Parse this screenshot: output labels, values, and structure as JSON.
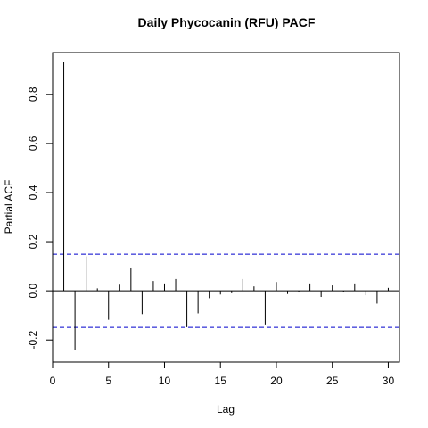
{
  "chart_data": {
    "type": "bar",
    "title": "Daily Phycocanin (RFU) PACF",
    "xlabel": "Lag",
    "ylabel": "Partial ACF",
    "xlim": [
      0,
      31
    ],
    "ylim": [
      -0.29,
      0.97
    ],
    "x_ticks": [
      0,
      5,
      10,
      15,
      20,
      25,
      30
    ],
    "y_ticks": [
      -0.2,
      0.0,
      0.2,
      0.4,
      0.6,
      0.8
    ],
    "y_tick_labels": [
      "-0.2",
      "0.0",
      "0.2",
      "0.4",
      "0.6",
      "0.8"
    ],
    "confidence_limit": 0.149,
    "zero_line": true,
    "lags": [
      1,
      2,
      3,
      4,
      5,
      6,
      7,
      8,
      9,
      10,
      11,
      12,
      13,
      14,
      15,
      16,
      17,
      18,
      19,
      20,
      21,
      22,
      23,
      24,
      25,
      26,
      27,
      28,
      29,
      30
    ],
    "values": [
      0.933,
      -0.24,
      0.14,
      0.01,
      -0.118,
      0.025,
      0.095,
      -0.095,
      0.04,
      0.03,
      0.048,
      -0.148,
      -0.092,
      -0.03,
      -0.015,
      -0.01,
      0.048,
      0.018,
      -0.137,
      0.036,
      -0.013,
      -0.005,
      0.03,
      -0.025,
      0.022,
      -0.005,
      0.03,
      -0.018,
      -0.052,
      0.012
    ],
    "colors": {
      "bars": "#000000",
      "confidence": "#0000cc",
      "frame": "#000000"
    }
  }
}
